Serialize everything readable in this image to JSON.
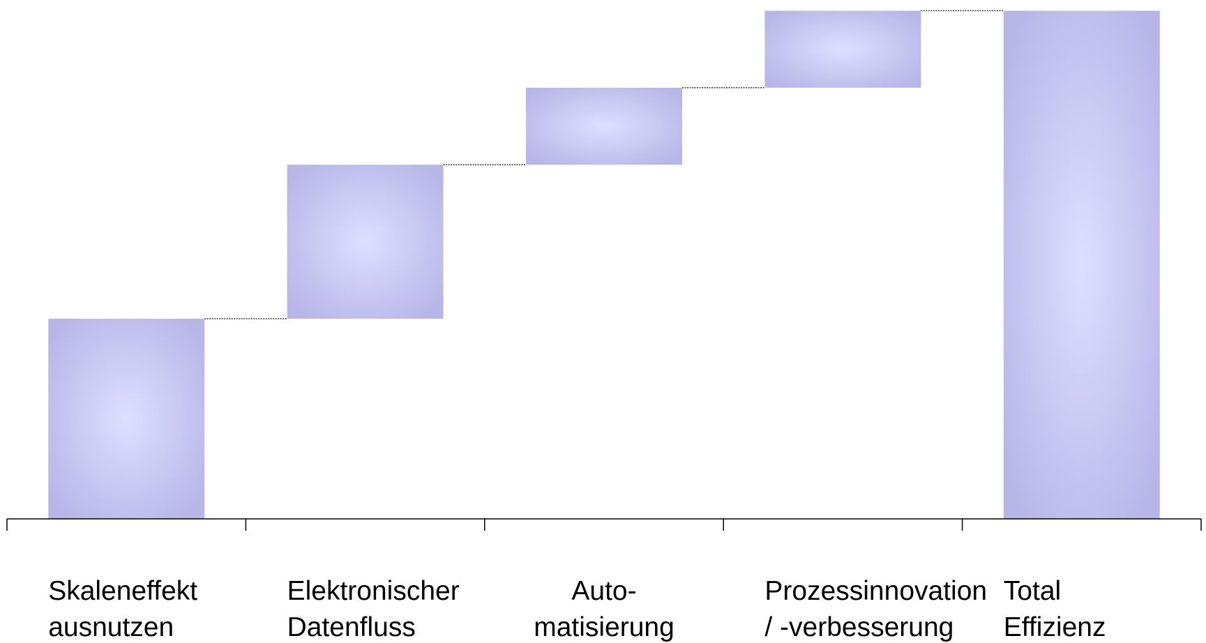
{
  "chart_data": {
    "type": "bar",
    "subtype": "waterfall",
    "categories": [
      [
        "Skaleneffekt",
        "ausnutzen"
      ],
      [
        "Elektronischer",
        "Datenfluss"
      ],
      [
        "Auto-",
        "matisierung"
      ],
      [
        "Prozessinnovation",
        "/ -verbesserung"
      ],
      [
        "Total",
        "Effizienz"
      ]
    ],
    "label_align": [
      "start",
      "start",
      "middle",
      "start",
      "start"
    ],
    "values": [
      39,
      30,
      15,
      15,
      99
    ],
    "is_total": [
      false,
      false,
      false,
      false,
      true
    ],
    "ylim": [
      0,
      100
    ],
    "connectors": true,
    "grid": false,
    "legend": "none",
    "colors": {
      "bar_edge": "#b8b6e8",
      "bar_center": "#dddfff",
      "axis": "#000000",
      "connector": "#333333"
    }
  }
}
